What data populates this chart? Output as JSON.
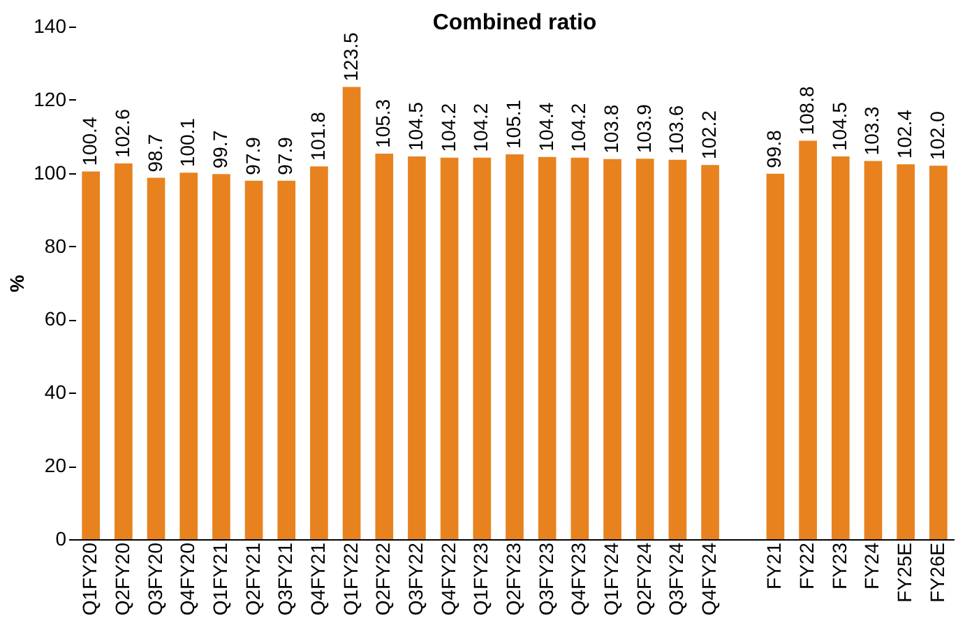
{
  "chart_data": {
    "type": "bar",
    "title": "Combined ratio",
    "ylabel": "%",
    "categories": [
      "Q1FY20",
      "Q2FY20",
      "Q3FY20",
      "Q4FY20",
      "Q1FY21",
      "Q2FY21",
      "Q3FY21",
      "Q4FY21",
      "Q1FY22",
      "Q2FY22",
      "Q3FY22",
      "Q4FY22",
      "Q1FY23",
      "Q2FY23",
      "Q3FY23",
      "Q4FY23",
      "Q1FY24",
      "Q2FY24",
      "Q3FY24",
      "Q4FY24",
      null,
      "FY21",
      "FY22",
      "FY23",
      "FY24",
      "FY25E",
      "FY26E"
    ],
    "values": [
      100.4,
      102.6,
      98.7,
      100.1,
      99.7,
      97.9,
      97.9,
      101.8,
      123.5,
      105.3,
      104.5,
      104.2,
      104.2,
      105.1,
      104.4,
      104.2,
      103.8,
      103.9,
      103.6,
      102.2,
      null,
      99.8,
      108.8,
      104.5,
      103.3,
      102.4,
      102.0
    ],
    "value_labels": [
      "100.4",
      "102.6",
      "98.7",
      "100.1",
      "99.7",
      "97.9",
      "97.9",
      "101.8",
      "123.5",
      "105.3",
      "104.5",
      "104.2",
      "104.2",
      "105.1",
      "104.4",
      "104.2",
      "103.8",
      "103.9",
      "103.6",
      "102.2",
      null,
      "99.8",
      "108.8",
      "104.5",
      "103.3",
      "102.4",
      "102.0"
    ],
    "color": "#e8821e",
    "ylim": [
      0,
      140
    ],
    "yticks": [
      0,
      20,
      40,
      60,
      80,
      100,
      120,
      140
    ],
    "grid": false
  }
}
